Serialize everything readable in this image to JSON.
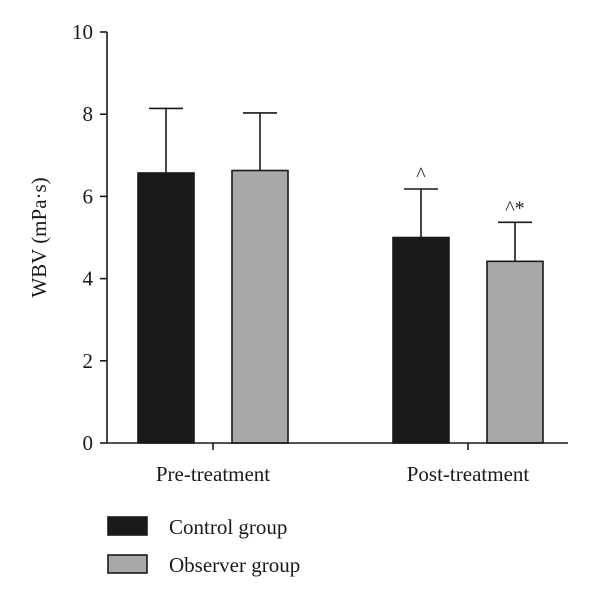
{
  "chart_data": {
    "type": "bar",
    "title": "",
    "xlabel": "",
    "ylabel": "WBV (mPa·s)",
    "ylim": [
      0,
      10
    ],
    "yticks": [
      0,
      2,
      4,
      6,
      8,
      10
    ],
    "categories": [
      "Pre-treatment",
      "Post-treatment"
    ],
    "series": [
      {
        "name": "Control group",
        "color": "#1a1a1a",
        "values": [
          6.57,
          5.0
        ],
        "errors": [
          1.57,
          1.18
        ],
        "annotations": [
          "",
          "^"
        ]
      },
      {
        "name": "Observer group",
        "color": "#a8a8a8",
        "values": [
          6.63,
          4.42
        ],
        "errors": [
          1.4,
          0.95
        ],
        "annotations": [
          "",
          "^*"
        ]
      }
    ],
    "grid": false,
    "legend_position": "bottom-left"
  }
}
